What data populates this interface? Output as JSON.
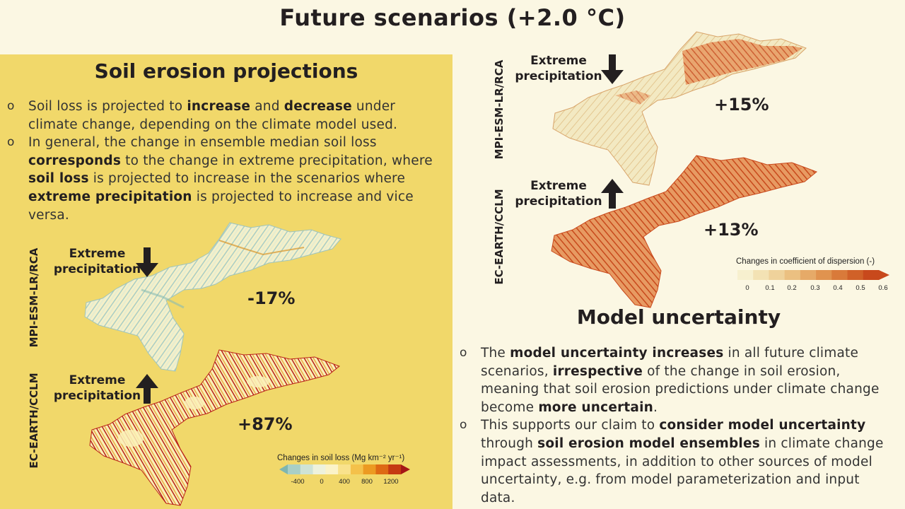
{
  "title": "Future scenarios (+2.0 °C)",
  "left": {
    "heading": "Soil erosion projections",
    "bullet1": {
      "p1": "Soil loss is projected to ",
      "b1": "increase",
      "p2": " and ",
      "b2": "decrease",
      "p3": " under climate change, depending on the climate model used."
    },
    "bullet2": {
      "p1": "In general, the change in ensemble median soil loss ",
      "b1": "corresponds",
      "p2": " to the change in extreme precipitation, where ",
      "b2": "soil loss",
      "p3": " is projected to increase in the scenarios where ",
      "b3": "extreme precipitation",
      "p4": " is projected to increase and vice versa."
    },
    "maps": [
      {
        "model": "MPI-ESM-LR/RCA",
        "extreme_label": "Extreme precipitation",
        "direction": "down",
        "change": "-17%"
      },
      {
        "model": "EC-EARTH/CCLM",
        "extreme_label": "Extreme precipitation",
        "direction": "up",
        "change": "+87%"
      }
    ],
    "legend": {
      "title": "Changes in soil loss (Mg km⁻² yr⁻¹)",
      "ticks": [
        "-400",
        "0",
        "400",
        "800",
        "1200"
      ],
      "colors": [
        "#7fb6b0",
        "#a9cfc6",
        "#cfe3d6",
        "#eef2dc",
        "#fbf3c8",
        "#f9e28c",
        "#f4c14a",
        "#ec9a22",
        "#de6a14",
        "#c53a12",
        "#a51616"
      ]
    }
  },
  "right": {
    "maps": [
      {
        "model": "MPI-ESM-LR/RCA",
        "extreme_label": "Extreme precipitation",
        "direction": "down",
        "change": "+15%"
      },
      {
        "model": "EC-EARTH/CCLM",
        "extreme_label": "Extreme precipitation",
        "direction": "up",
        "change": "+13%"
      }
    ],
    "legend": {
      "title": "Changes in coefficient of dispersion (-)",
      "ticks": [
        "0",
        "0.1",
        "0.2",
        "0.3",
        "0.4",
        "0.5",
        "0.6"
      ],
      "colors": [
        "#f7f0cf",
        "#f3e2b4",
        "#efd29b",
        "#ebc081",
        "#e6aa68",
        "#e0934f",
        "#d97a3a",
        "#d06128",
        "#c8491c"
      ]
    },
    "heading": "Model uncertainty",
    "bullet1": {
      "p1": "The ",
      "b1": "model uncertainty increases",
      "p2": " in all future climate scenarios, ",
      "b2": "irrespective",
      "p3": " of the change in soil erosion, meaning that soil erosion predictions under climate change become ",
      "b3": "more uncertain",
      "p4": "."
    },
    "bullet2": {
      "p1": "This supports our claim to ",
      "b1": "consider model uncertainty",
      "p2": " through ",
      "b2": "soil erosion model ensembles",
      "p3": " in climate change impact assessments, in addition to other sources of model uncertainty, e.g. from model parameterization and input data."
    }
  },
  "colors": {
    "left_panel": "#f1d86a",
    "background": "#fbf7e3",
    "text": "#231f20"
  }
}
